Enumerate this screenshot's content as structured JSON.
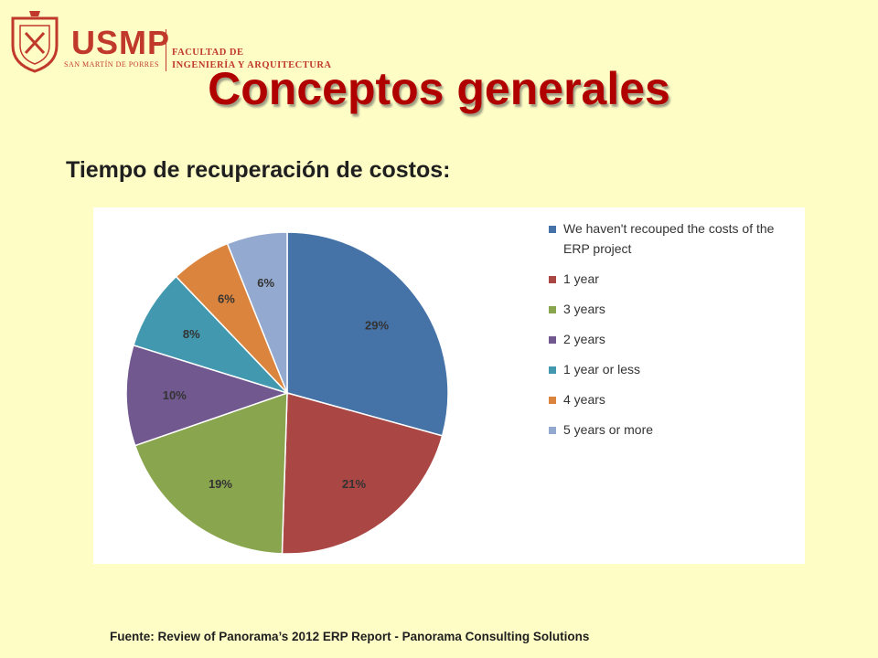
{
  "header": {
    "brand": "USMP",
    "brand_sub": "SAN MARTÍN DE PORRES",
    "faculty_line1": "FACULTAD DE",
    "faculty_line2": "INGENIERÍA Y ARQUITECTURA"
  },
  "slide": {
    "title": "Conceptos generales",
    "subtitle": "Tiempo de recuperación de costos:",
    "source": "Fuente: Review of Panorama’s 2012 ERP Report - Panorama Consulting Solutions"
  },
  "colors": {
    "background": "#fefdc6",
    "title": "#b00000",
    "brand": "#c0392b"
  },
  "chart_data": {
    "type": "pie",
    "labels": [
      "We haven't recouped the costs of the ERP project",
      "1 year",
      "3 years",
      "2 years",
      "1 year or less",
      "4 years",
      "5 years or more"
    ],
    "values": [
      29,
      21,
      19,
      10,
      8,
      6,
      6
    ],
    "data_labels": [
      "29%",
      "21%",
      "19%",
      "10%",
      "8%",
      "6%",
      "6%"
    ],
    "colors": [
      "#4572a7",
      "#aa4643",
      "#89a54e",
      "#71588f",
      "#4198af",
      "#db843d",
      "#93a9cf"
    ],
    "legend_position": "right"
  }
}
